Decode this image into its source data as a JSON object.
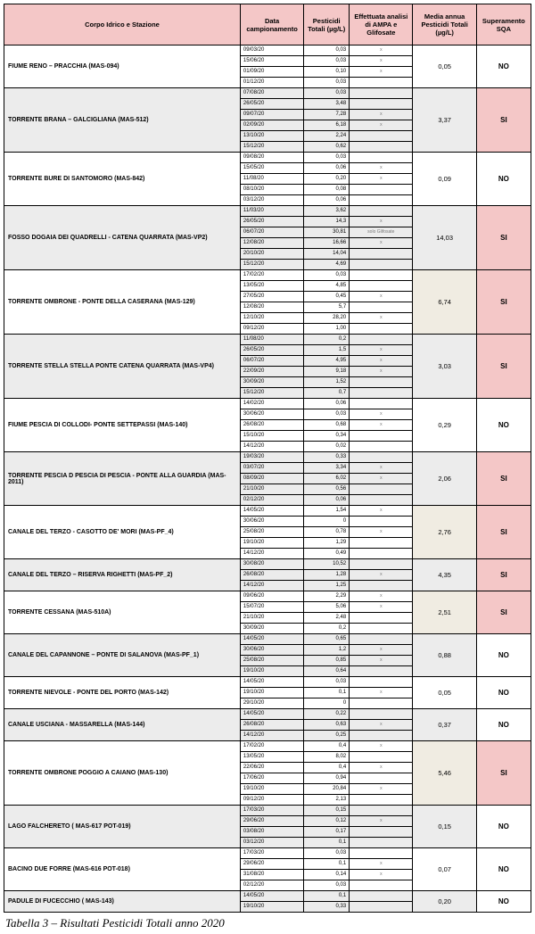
{
  "headers": {
    "station": "Corpo Idrico e Stazione",
    "date": "Data campionamento",
    "totali": "Pesticidi Totali (µg/L)",
    "analysis": "Effettuata analisi di AMPA e Glifosate",
    "media": "Media annua Pesticidi Totali (µg/L)",
    "sqa": "Superamento SQA"
  },
  "caption": "Tabella 3 – Risultati Pesticidi Totali anno 2020",
  "colors": {
    "header_bg": "#f4c7c7",
    "gray_bg": "#ececec",
    "cream_bg": "#f0ece2",
    "white_bg": "#ffffff",
    "si_bg": "#f4c7c7"
  },
  "stations": [
    {
      "name": "FIUME RENO – PRACCHIA (MAS-094)",
      "bg": "bg-white",
      "media": "0,05",
      "media_bg": "bg-white",
      "sqa": "NO",
      "rows": [
        {
          "date": "09/03/20",
          "tot": "0,03",
          "a": "x"
        },
        {
          "date": "15/06/20",
          "tot": "0,03",
          "a": "x"
        },
        {
          "date": "01/09/20",
          "tot": "0,10",
          "a": "x"
        },
        {
          "date": "01/12/20",
          "tot": "0,03",
          "a": ""
        }
      ]
    },
    {
      "name": "TORRENTE BRANA – GALCIGLIANA (MAS-512)",
      "bg": "bg-gray",
      "media": "3,37",
      "media_bg": "bg-gray",
      "sqa": "SI",
      "rows": [
        {
          "date": "07/08/20",
          "tot": "0,03",
          "a": ""
        },
        {
          "date": "26/05/20",
          "tot": "3,48",
          "a": ""
        },
        {
          "date": "09/07/20",
          "tot": "7,28",
          "a": "x"
        },
        {
          "date": "02/09/20",
          "tot": "6,18",
          "a": "x"
        },
        {
          "date": "13/10/20",
          "tot": "2,24",
          "a": ""
        },
        {
          "date": "15/12/20",
          "tot": "0,62",
          "a": ""
        }
      ]
    },
    {
      "name": "TORRENTE BURE DI SANTOMORO (MAS-842)",
      "bg": "bg-white",
      "media": "0,09",
      "media_bg": "bg-white",
      "sqa": "NO",
      "rows": [
        {
          "date": "09/08/20",
          "tot": "0,03",
          "a": ""
        },
        {
          "date": "15/05/20",
          "tot": "0,06",
          "a": "x"
        },
        {
          "date": "11/08/20",
          "tot": "0,20",
          "a": "x"
        },
        {
          "date": "08/10/20",
          "tot": "0,08",
          "a": ""
        },
        {
          "date": "03/12/20",
          "tot": "0,06",
          "a": ""
        }
      ]
    },
    {
      "name": "FOSSO DOGAIA DEI QUADRELLI - CATENA QUARRATA (MAS-VP2)",
      "bg": "bg-gray",
      "media": "14,03",
      "media_bg": "bg-gray",
      "sqa": "SI",
      "rows": [
        {
          "date": "11/03/20",
          "tot": "3,62",
          "a": ""
        },
        {
          "date": "26/05/20",
          "tot": "14,3",
          "a": "x"
        },
        {
          "date": "06/07/20",
          "tot": "30,81",
          "a": "solo Glifosate"
        },
        {
          "date": "12/08/20",
          "tot": "16,66",
          "a": "x"
        },
        {
          "date": "20/10/20",
          "tot": "14,04",
          "a": ""
        },
        {
          "date": "15/12/20",
          "tot": "4,69",
          "a": ""
        }
      ]
    },
    {
      "name": "TORRENTE OMBRONE - PONTE DELLA CASERANA (MAS-129)",
      "bg": "bg-white",
      "media": "6,74",
      "media_bg": "bg-creamgray",
      "sqa": "SI",
      "rows": [
        {
          "date": "17/02/20",
          "tot": "0,03",
          "a": ""
        },
        {
          "date": "13/05/20",
          "tot": "4,85",
          "a": ""
        },
        {
          "date": "27/05/20",
          "tot": "0,45",
          "a": "x"
        },
        {
          "date": "12/08/20",
          "tot": "5,7",
          "a": ""
        },
        {
          "date": "12/10/20",
          "tot": "28,20",
          "a": "x"
        },
        {
          "date": "09/12/20",
          "tot": "1,00",
          "a": ""
        }
      ]
    },
    {
      "name": "TORRENTE STELLA STELLA PONTE CATENA QUARRATA (MAS-VP4)",
      "bg": "bg-gray",
      "media": "3,03",
      "media_bg": "bg-gray",
      "sqa": "SI",
      "rows": [
        {
          "date": "11/08/20",
          "tot": "0,2",
          "a": ""
        },
        {
          "date": "26/05/20",
          "tot": "1,5",
          "a": "x"
        },
        {
          "date": "06/07/20",
          "tot": "4,95",
          "a": "x"
        },
        {
          "date": "22/09/20",
          "tot": "9,18",
          "a": "x"
        },
        {
          "date": "30/09/20",
          "tot": "1,52",
          "a": ""
        },
        {
          "date": "15/12/20",
          "tot": "0,7",
          "a": ""
        }
      ]
    },
    {
      "name": "FIUME PESCIA DI COLLODI- PONTE SETTEPASSI (MAS-140)",
      "bg": "bg-white",
      "media": "0,29",
      "media_bg": "bg-white",
      "sqa": "NO",
      "rows": [
        {
          "date": "14/02/20",
          "tot": "0,06",
          "a": ""
        },
        {
          "date": "30/06/20",
          "tot": "0,03",
          "a": "x"
        },
        {
          "date": "26/08/20",
          "tot": "0,68",
          "a": "x"
        },
        {
          "date": "15/10/20",
          "tot": "0,34",
          "a": ""
        },
        {
          "date": "14/12/20",
          "tot": "0,02",
          "a": ""
        }
      ]
    },
    {
      "name": "TORRENTE PESCIA D PESCIA DI PESCIA - PONTE ALLA GUARDIA (MAS-2011)",
      "bg": "bg-gray",
      "media": "2,06",
      "media_bg": "bg-gray",
      "sqa": "SI",
      "rows": [
        {
          "date": "19/03/20",
          "tot": "0,33",
          "a": ""
        },
        {
          "date": "03/07/20",
          "tot": "3,34",
          "a": "x"
        },
        {
          "date": "08/09/20",
          "tot": "6,02",
          "a": "x"
        },
        {
          "date": "21/10/20",
          "tot": "0,56",
          "a": ""
        },
        {
          "date": "02/12/20",
          "tot": "0,06",
          "a": ""
        }
      ]
    },
    {
      "name": "CANALE DEL TERZO - CASOTTO DE' MORI (MAS-PF_4)",
      "bg": "bg-white",
      "media": "2,76",
      "media_bg": "bg-creamgray",
      "sqa": "SI",
      "rows": [
        {
          "date": "14/05/20",
          "tot": "1,54",
          "a": "x"
        },
        {
          "date": "30/06/20",
          "tot": "0",
          "a": ""
        },
        {
          "date": "25/08/20",
          "tot": "0,78",
          "a": "x"
        },
        {
          "date": "19/10/20",
          "tot": "1,29",
          "a": ""
        },
        {
          "date": "14/12/20",
          "tot": "0,49",
          "a": ""
        }
      ]
    },
    {
      "name": "CANALE DEL TERZO – RISERVA RIGHETTI (MAS-PF_2)",
      "bg": "bg-gray",
      "media": "4,35",
      "media_bg": "bg-gray",
      "sqa": "SI",
      "rows": [
        {
          "date": "30/08/20",
          "tot": "10,52",
          "a": ""
        },
        {
          "date": "26/08/20",
          "tot": "1,28",
          "a": "x"
        },
        {
          "date": "14/12/20",
          "tot": "1,25",
          "a": ""
        }
      ]
    },
    {
      "name": "TORRENTE CESSANA (MAS-510A)",
      "bg": "bg-white",
      "media": "2,51",
      "media_bg": "bg-creamgray",
      "sqa": "SI",
      "rows": [
        {
          "date": "09/06/20",
          "tot": "2,29",
          "a": "x"
        },
        {
          "date": "15/07/20",
          "tot": "5,06",
          "a": "x"
        },
        {
          "date": "21/10/20",
          "tot": "2,48",
          "a": ""
        },
        {
          "date": "30/09/20",
          "tot": "0,2",
          "a": ""
        }
      ]
    },
    {
      "name": "CANALE DEL CAPANNONE –  PONTE DI SALANOVA (MAS-PF_1)",
      "bg": "bg-gray",
      "media": "0,88",
      "media_bg": "bg-gray",
      "sqa": "NO",
      "rows": [
        {
          "date": "14/05/20",
          "tot": "0,65",
          "a": ""
        },
        {
          "date": "30/06/20",
          "tot": "1,2",
          "a": "x"
        },
        {
          "date": "25/08/20",
          "tot": "0,85",
          "a": "x"
        },
        {
          "date": "19/10/20",
          "tot": "0,64",
          "a": ""
        }
      ]
    },
    {
      "name": "TORRENTE NIEVOLE - PONTE DEL PORTO (MAS-142)",
      "bg": "bg-white",
      "media": "0,05",
      "media_bg": "bg-white",
      "sqa": "NO",
      "rows": [
        {
          "date": "14/05/20",
          "tot": "0,03",
          "a": ""
        },
        {
          "date": "19/10/20",
          "tot": "0,1",
          "a": "x"
        },
        {
          "date": "29/10/20",
          "tot": "0",
          "a": ""
        }
      ]
    },
    {
      "name": "CANALE USCIANA - MASSARELLA (MAS-144)",
      "bg": "bg-gray",
      "media": "0,37",
      "media_bg": "bg-gray",
      "sqa": "NO",
      "rows": [
        {
          "date": "14/05/20",
          "tot": "0,22",
          "a": ""
        },
        {
          "date": "26/08/20",
          "tot": "0,63",
          "a": "x"
        },
        {
          "date": "14/12/20",
          "tot": "0,25",
          "a": ""
        }
      ]
    },
    {
      "name": "TORRENTE OMBRONE POGGIO A CAIANO (MAS-130)",
      "bg": "bg-white",
      "media": "5,46",
      "media_bg": "bg-creamgray",
      "sqa": "SI",
      "rows": [
        {
          "date": "17/02/20",
          "tot": "0,4",
          "a": "x"
        },
        {
          "date": "13/05/20",
          "tot": "8,02",
          "a": ""
        },
        {
          "date": "22/06/20",
          "tot": "0,4",
          "a": "x"
        },
        {
          "date": "17/06/20",
          "tot": "0,94",
          "a": ""
        },
        {
          "date": "19/10/20",
          "tot": "20,84",
          "a": "x"
        },
        {
          "date": "09/12/20",
          "tot": "2,13",
          "a": ""
        }
      ]
    },
    {
      "name": "LAGO FALCHERETO ( MAS-617 POT-019)",
      "bg": "bg-gray",
      "media": "0,15",
      "media_bg": "bg-gray",
      "sqa": "NO",
      "rows": [
        {
          "date": "17/03/20",
          "tot": "0,15",
          "a": ""
        },
        {
          "date": "29/06/20",
          "tot": "0,12",
          "a": "x"
        },
        {
          "date": "03/08/20",
          "tot": "0,17",
          "a": ""
        },
        {
          "date": "03/12/20",
          "tot": "0,1",
          "a": ""
        }
      ]
    },
    {
      "name": "BACINO DUE FORRE (MAS-616 POT-018)",
      "bg": "bg-white",
      "media": "0,07",
      "media_bg": "bg-white",
      "sqa": "NO",
      "rows": [
        {
          "date": "17/03/20",
          "tot": "0,03",
          "a": ""
        },
        {
          "date": "29/06/20",
          "tot": "0,1",
          "a": "x"
        },
        {
          "date": "31/08/20",
          "tot": "0,14",
          "a": "x"
        },
        {
          "date": "02/12/20",
          "tot": "0,03",
          "a": ""
        }
      ]
    },
    {
      "name": "PADULE DI FUCECCHIO ( MAS-143)",
      "bg": "bg-gray",
      "media": "0,20",
      "media_bg": "bg-gray",
      "sqa": "NO",
      "rows": [
        {
          "date": "14/05/20",
          "tot": "0,1",
          "a": ""
        },
        {
          "date": "19/10/20",
          "tot": "0,33",
          "a": ""
        }
      ]
    }
  ]
}
